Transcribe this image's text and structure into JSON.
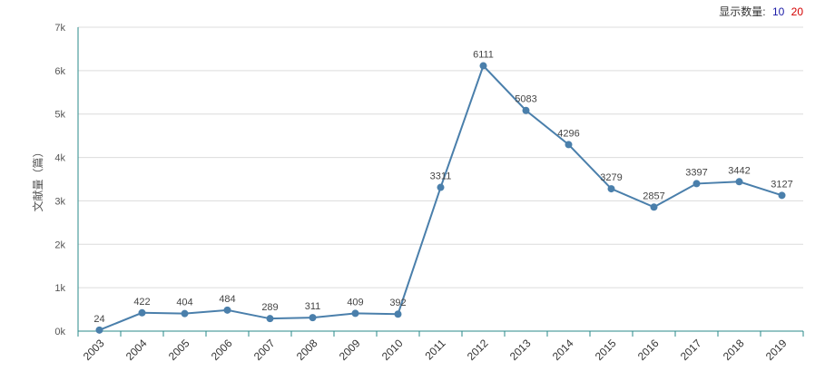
{
  "controls": {
    "label": "显示数量:",
    "options": [
      "10",
      "20"
    ]
  },
  "chart_data": {
    "type": "line",
    "title": "",
    "xlabel": "",
    "ylabel": "文献量（篇）",
    "categories": [
      "2003",
      "2004",
      "2005",
      "2006",
      "2007",
      "2008",
      "2009",
      "2010",
      "2011",
      "2012",
      "2013",
      "2014",
      "2015",
      "2016",
      "2017",
      "2018",
      "2019"
    ],
    "values": [
      24,
      422,
      404,
      484,
      289,
      311,
      409,
      392,
      3311,
      6111,
      5083,
      4296,
      3279,
      2857,
      3397,
      3442,
      3127
    ],
    "ylim": [
      0,
      7000
    ],
    "yticks": [
      "0k",
      "1k",
      "2k",
      "3k",
      "4k",
      "5k",
      "6k",
      "7k"
    ],
    "grid": true,
    "line_color": "#4a7fab",
    "axis_color": "#2a8a8a"
  }
}
